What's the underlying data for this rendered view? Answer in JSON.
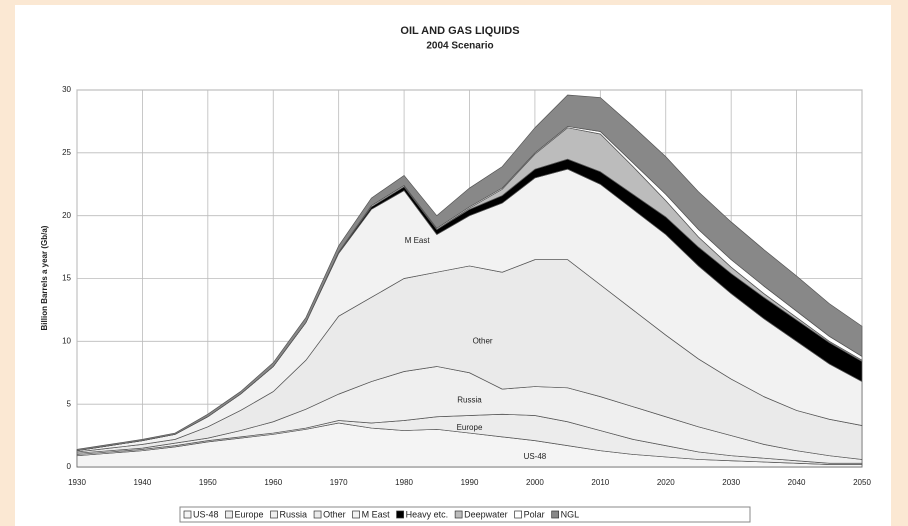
{
  "chart_data": {
    "type": "stacked_area",
    "title": "OIL AND GAS LIQUIDS",
    "subtitle": "2004 Scenario",
    "y_label": "Billion Barrels a year (Gb/a)",
    "x": [
      1930,
      1935,
      1940,
      1945,
      1950,
      1955,
      1960,
      1965,
      1970,
      1975,
      1980,
      1985,
      1990,
      1995,
      2000,
      2005,
      2010,
      2015,
      2020,
      2025,
      2030,
      2035,
      2040,
      2045,
      2050
    ],
    "xlim": [
      1930,
      2050
    ],
    "xticks": [
      1930,
      1940,
      1950,
      1960,
      1970,
      1980,
      1990,
      2000,
      2010,
      2020,
      2030,
      2040,
      2050
    ],
    "ylim": [
      0,
      30
    ],
    "yticks": [
      0,
      5,
      10,
      15,
      20,
      25,
      30
    ],
    "grid": true,
    "legend": "bottom",
    "series": [
      {
        "name": "US-48",
        "color": "#f4f4f4",
        "values": [
          0.9,
          1.1,
          1.3,
          1.6,
          2.0,
          2.3,
          2.6,
          3.0,
          3.5,
          3.1,
          2.9,
          3.0,
          2.7,
          2.4,
          2.1,
          1.7,
          1.3,
          1.0,
          0.8,
          0.6,
          0.5,
          0.4,
          0.3,
          0.2,
          0.2
        ]
      },
      {
        "name": "Europe",
        "color": "#ececec",
        "values": [
          0.1,
          0.1,
          0.1,
          0.1,
          0.1,
          0.1,
          0.1,
          0.1,
          0.2,
          0.4,
          0.8,
          1.0,
          1.4,
          1.8,
          2.0,
          1.9,
          1.6,
          1.2,
          0.9,
          0.6,
          0.4,
          0.3,
          0.2,
          0.1,
          0.1
        ]
      },
      {
        "name": "Russia",
        "color": "#efefef",
        "values": [
          0.1,
          0.1,
          0.1,
          0.2,
          0.2,
          0.5,
          0.9,
          1.5,
          2.1,
          3.3,
          3.9,
          4.0,
          3.4,
          2.0,
          2.3,
          2.7,
          2.7,
          2.6,
          2.3,
          2.0,
          1.6,
          1.1,
          0.8,
          0.6,
          0.3
        ]
      },
      {
        "name": "Other",
        "color": "#eaeaea",
        "values": [
          0.1,
          0.2,
          0.3,
          0.3,
          0.9,
          1.6,
          2.4,
          3.9,
          6.2,
          6.7,
          7.4,
          7.5,
          8.5,
          9.3,
          10.1,
          10.2,
          8.9,
          7.7,
          6.5,
          5.4,
          4.5,
          3.8,
          3.2,
          2.9,
          2.7
        ]
      },
      {
        "name": "M East",
        "color": "#f2f2f2",
        "values": [
          0.1,
          0.2,
          0.3,
          0.4,
          0.8,
          1.3,
          2.0,
          3.0,
          5.0,
          7.0,
          7.0,
          3.0,
          4.0,
          5.5,
          6.5,
          7.2,
          8.0,
          8.0,
          8.0,
          7.4,
          6.8,
          6.2,
          5.5,
          4.4,
          3.5
        ]
      },
      {
        "name": "Heavy etc.",
        "color": "#000000",
        "values": [
          0,
          0,
          0,
          0,
          0,
          0,
          0,
          0,
          0.1,
          0.2,
          0.3,
          0.4,
          0.5,
          0.6,
          0.7,
          0.8,
          1.0,
          1.2,
          1.4,
          1.5,
          1.6,
          1.7,
          1.7,
          1.7,
          1.6
        ]
      },
      {
        "name": "Deepwater",
        "color": "#bcbcbc",
        "values": [
          0,
          0,
          0,
          0,
          0,
          0,
          0,
          0,
          0,
          0,
          0,
          0,
          0.1,
          0.5,
          1.2,
          2.5,
          3.0,
          2.2,
          1.3,
          0.8,
          0.5,
          0.3,
          0.2,
          0.1,
          0.1
        ]
      },
      {
        "name": "Polar",
        "color": "#ffffff",
        "values": [
          0,
          0,
          0,
          0,
          0,
          0,
          0,
          0,
          0,
          0.1,
          0.1,
          0.1,
          0.1,
          0.1,
          0.1,
          0.1,
          0.2,
          0.3,
          0.5,
          0.6,
          0.6,
          0.6,
          0.5,
          0.4,
          0.3
        ]
      },
      {
        "name": "NGL",
        "color": "#888888",
        "values": [
          0.1,
          0.1,
          0.1,
          0.1,
          0.2,
          0.2,
          0.3,
          0.4,
          0.5,
          0.6,
          0.8,
          1.0,
          1.5,
          1.7,
          2.0,
          2.5,
          2.7,
          2.9,
          3.0,
          3.0,
          3.0,
          2.9,
          2.8,
          2.6,
          2.4
        ]
      }
    ]
  }
}
